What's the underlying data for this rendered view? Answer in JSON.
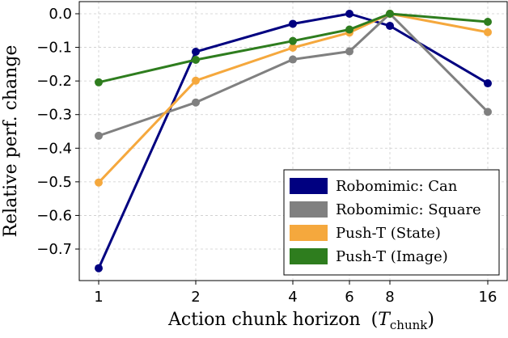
{
  "chart_data": {
    "type": "line",
    "x": [
      1,
      2,
      4,
      6,
      8,
      16
    ],
    "x_tick_labels": [
      "1",
      "2",
      "4",
      "6",
      "8",
      "16"
    ],
    "xlabel": "Action chunk horizon",
    "xlabel_symbol": "T",
    "xlabel_subscript": "chunk",
    "ylabel": "Relative perf. change",
    "ylim": [
      -0.79,
      0.035
    ],
    "y_ticks": [
      0.0,
      -0.1,
      -0.2,
      -0.3,
      -0.4,
      -0.5,
      -0.6,
      -0.7
    ],
    "y_tick_labels": [
      "0.0",
      "−0.1",
      "−0.2",
      "−0.3",
      "−0.4",
      "−0.5",
      "−0.6",
      "−0.7"
    ],
    "grid": true,
    "legend_position": "lower-right",
    "series": [
      {
        "name": "Robomimic: Can",
        "color": "#000080",
        "values": [
          -0.757,
          -0.113,
          -0.03,
          0.0,
          -0.036,
          -0.207
        ]
      },
      {
        "name": "Robomimic: Square",
        "color": "#808080",
        "values": [
          -0.363,
          -0.264,
          -0.136,
          -0.112,
          0.0,
          -0.292
        ]
      },
      {
        "name": "Push-T (State)",
        "color": "#f5a83d",
        "values": [
          -0.502,
          -0.199,
          -0.101,
          -0.056,
          0.0,
          -0.055
        ]
      },
      {
        "name": "Push-T (Image)",
        "color": "#2e7d1e",
        "values": [
          -0.204,
          -0.137,
          -0.081,
          -0.047,
          0.0,
          -0.024
        ]
      }
    ]
  }
}
